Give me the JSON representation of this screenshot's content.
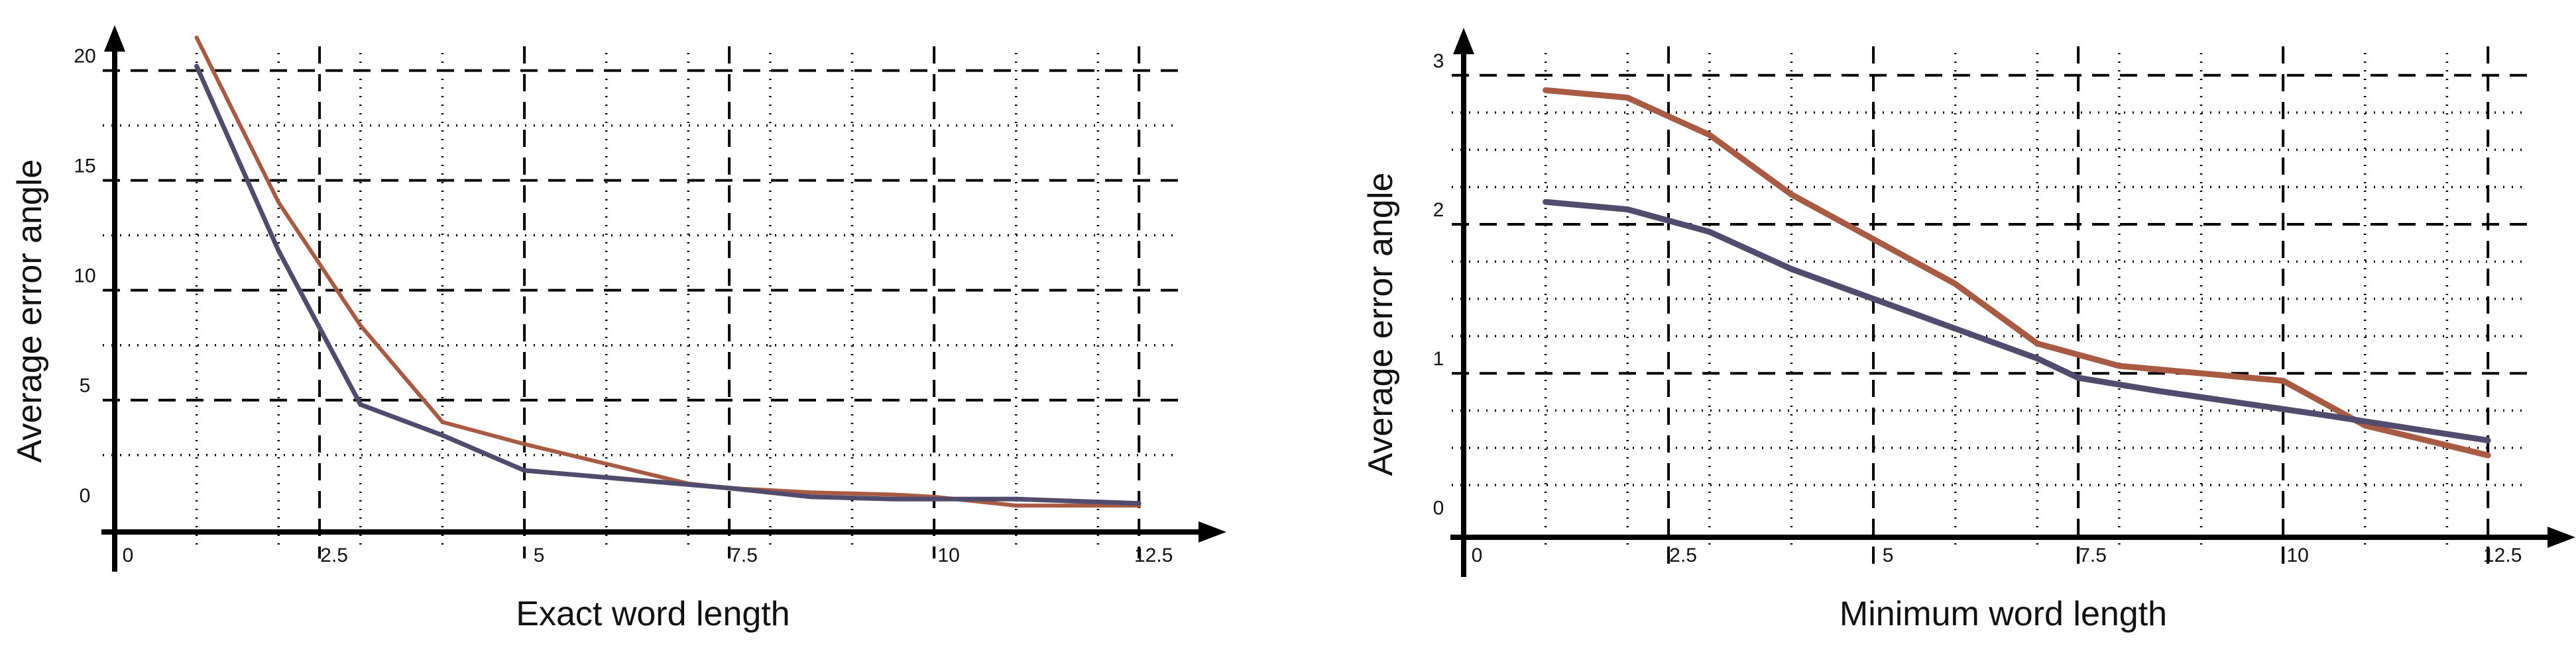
{
  "colors": {
    "series_a": "#a85a43",
    "series_b": "#514c6e",
    "axis": "#000000",
    "grid": "#000000"
  },
  "chart_data": [
    {
      "type": "line",
      "xlabel": "Exact word length",
      "ylabel": "Average error angle",
      "xlim": [
        0,
        13
      ],
      "ylim": [
        -1,
        20.8
      ],
      "x_ticks": [
        0,
        2.5,
        5,
        7.5,
        10,
        12.5
      ],
      "x_tick_labels": [
        "0",
        "2.5",
        "5",
        "7.5",
        "10",
        "12.5"
      ],
      "y_ticks": [
        0,
        5,
        10,
        15,
        20
      ],
      "y_tick_labels": [
        "0",
        "5",
        "10",
        "15",
        "20"
      ],
      "grid": true,
      "series": [
        {
          "x": [
            1,
            2,
            3,
            4,
            5,
            6,
            7,
            7.5,
            8.5,
            9.5,
            10,
            11,
            12.5
          ],
          "values": [
            21.5,
            14,
            8.4,
            4,
            3,
            2.1,
            1.2,
            1,
            0.8,
            0.7,
            0.6,
            0.2,
            0.2
          ]
        },
        {
          "x": [
            1,
            2,
            3,
            4,
            5,
            7.5,
            8.5,
            9.5,
            10,
            11,
            12.5
          ],
          "values": [
            20.2,
            11.8,
            4.8,
            3.4,
            1.8,
            1,
            0.6,
            0.5,
            0.5,
            0.5,
            0.3
          ]
        }
      ]
    },
    {
      "type": "line",
      "xlabel": "Minimum word length",
      "ylabel": "Average error angle",
      "xlim": [
        0,
        13
      ],
      "ylim": [
        -0.1,
        3.15
      ],
      "x_ticks": [
        0,
        2.5,
        5,
        7.5,
        10,
        12.5
      ],
      "x_tick_labels": [
        "0",
        "2.5",
        "5",
        "7.5",
        "10",
        "12.5"
      ],
      "y_ticks": [
        0,
        1,
        2,
        3
      ],
      "y_tick_labels": [
        "0",
        "1",
        "2",
        "3"
      ],
      "grid": true,
      "series": [
        {
          "x": [
            1,
            2,
            3,
            4,
            5,
            6,
            7,
            8,
            9,
            10,
            11,
            12.5
          ],
          "values": [
            2.9,
            2.85,
            2.6,
            2.2,
            1.9,
            1.6,
            1.2,
            1.05,
            1,
            0.95,
            0.65,
            0.45
          ]
        },
        {
          "x": [
            1,
            2,
            3,
            4,
            5,
            6,
            7,
            7.5,
            8.5,
            9.5,
            10.5,
            12.5
          ],
          "values": [
            2.15,
            2.1,
            1.95,
            1.7,
            1.5,
            1.3,
            1.1,
            0.97,
            0.88,
            0.8,
            0.72,
            0.55
          ]
        }
      ]
    }
  ]
}
